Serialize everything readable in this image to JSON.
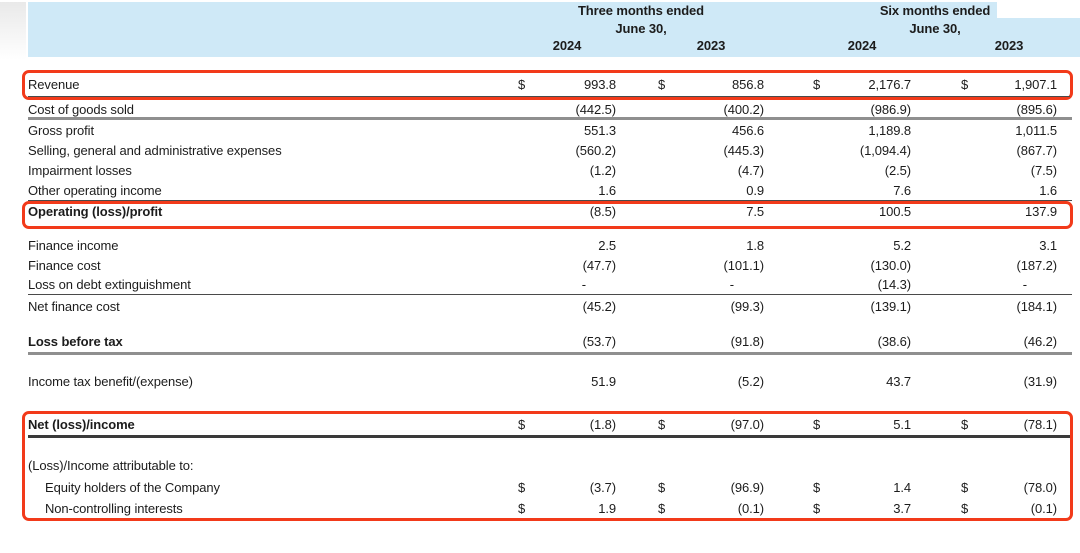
{
  "meta": {
    "currency": "$",
    "accent_red": "#f23a1a",
    "header_blue": "#cfe9f7"
  },
  "header": {
    "three_months": {
      "title": "Three months ended",
      "subtitle": "June 30,"
    },
    "six_months": {
      "title": "Six months ended",
      "subtitle": "June 30,"
    },
    "years": [
      "2024",
      "2023",
      "2024",
      "2023"
    ]
  },
  "rows": [
    {
      "id": "revenue",
      "label": "Revenue",
      "dollar": true,
      "values": [
        "993.8",
        "856.8",
        "2,176.7",
        "1,907.1"
      ]
    },
    {
      "id": "cost-of-goods-sold",
      "label": "Cost of goods sold",
      "values": [
        "(442.5)",
        "(400.2)",
        "(986.9)",
        "(895.6)"
      ]
    },
    {
      "id": "gross-profit",
      "label": "Gross profit",
      "values": [
        "551.3",
        "456.6",
        "1,189.8",
        "1,011.5"
      ]
    },
    {
      "id": "sga-expenses",
      "label": "Selling, general and administrative expenses",
      "values": [
        "(560.2)",
        "(445.3)",
        "(1,094.4)",
        "(867.7)"
      ]
    },
    {
      "id": "impairment-losses",
      "label": "Impairment losses",
      "values": [
        "(1.2)",
        "(4.7)",
        "(2.5)",
        "(7.5)"
      ]
    },
    {
      "id": "other-operating-income",
      "label": "Other operating income",
      "values": [
        "1.6",
        "0.9",
        "7.6",
        "1.6"
      ]
    },
    {
      "id": "operating-loss-profit",
      "label": "Operating (loss)/profit",
      "values": [
        "(8.5)",
        "7.5",
        "100.5",
        "137.9"
      ]
    },
    {
      "id": "finance-income",
      "label": "Finance income",
      "values": [
        "2.5",
        "1.8",
        "5.2",
        "3.1"
      ]
    },
    {
      "id": "finance-cost",
      "label": "Finance cost",
      "values": [
        "(47.7)",
        "(101.1)",
        "(130.0)",
        "(187.2)"
      ]
    },
    {
      "id": "loss-on-debt-extinguishment",
      "label": "Loss on debt extinguishment",
      "values": [
        "-",
        "-",
        "(14.3)",
        "-"
      ]
    },
    {
      "id": "net-finance-cost",
      "label": "Net finance cost",
      "values": [
        "(45.2)",
        "(99.3)",
        "(139.1)",
        "(184.1)"
      ]
    },
    {
      "id": "loss-before-tax",
      "label": "Loss before tax",
      "values": [
        "(53.7)",
        "(91.8)",
        "(38.6)",
        "(46.2)"
      ]
    },
    {
      "id": "income-tax-benefit-expense",
      "label": "Income tax benefit/(expense)",
      "values": [
        "51.9",
        "(5.2)",
        "43.7",
        "(31.9)"
      ]
    },
    {
      "id": "net-loss-income",
      "label": "Net (loss)/income",
      "dollar": true,
      "values": [
        "(1.8)",
        "(97.0)",
        "5.1",
        "(78.1)"
      ]
    },
    {
      "id": "attributable-heading",
      "label": "(Loss)/Income attributable to:",
      "values": [
        "",
        "",
        "",
        ""
      ]
    },
    {
      "id": "equity-holders",
      "label": "Equity holders of the Company",
      "dollar": true,
      "values": [
        "(3.7)",
        "(96.9)",
        "1.4",
        "(78.0)"
      ]
    },
    {
      "id": "non-controlling-interests",
      "label": "Non-controlling interests",
      "dollar": true,
      "values": [
        "1.9",
        "(0.1)",
        "3.7",
        "(0.1)"
      ]
    }
  ]
}
